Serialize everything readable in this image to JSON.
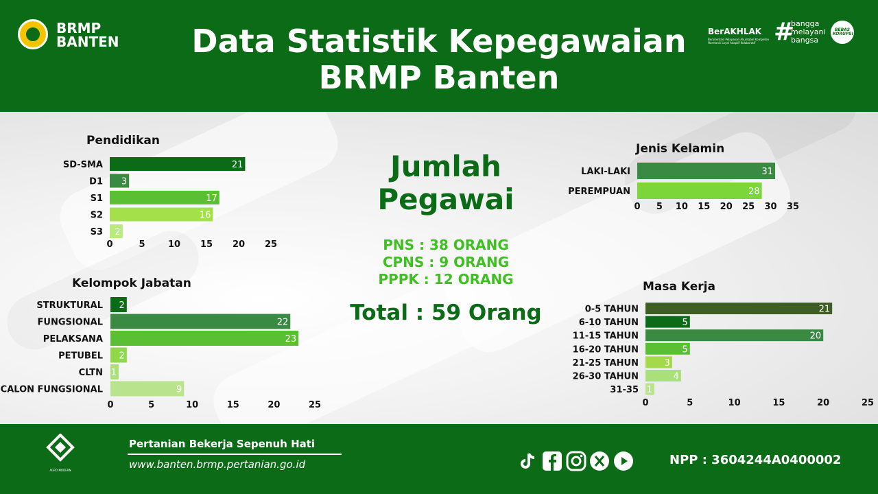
{
  "header": {
    "brand_line1": "BRMP",
    "brand_line2": "BANTEN",
    "title_line1": "Data Statistik Kepegawaian",
    "title_line2": "BRMP Banten",
    "berakhlak": "BerAKHLAK",
    "berakhlak_sub": "Berorientasi Pelayanan Akuntabel Kompeten Harmonis Loyal Adaptif Kolaboratif",
    "bangga": [
      "bangga",
      "melayani",
      "bangsa"
    ],
    "badge": "BEBAS KORUPSI"
  },
  "summary": {
    "title_line1": "Jumlah",
    "title_line2": "Pegawai",
    "pns": "PNS : 38 ORANG",
    "cpns": "CPNS : 9 ORANG",
    "pppk": "PPPK : 12 ORANG",
    "total": "Total : 59 Orang"
  },
  "footer": {
    "logo_text": "AGRO MODERN",
    "slogan": "Pertanian Bekerja Sepenuh Hati",
    "website": "www.banten.brmp.pertanian.go.id",
    "npp": "NPP : 3604244A0400002",
    "social_icons": [
      "tiktok-icon",
      "facebook-icon",
      "instagram-icon",
      "x-icon",
      "youtube-icon"
    ]
  },
  "chart_data": [
    {
      "type": "bar",
      "orientation": "horizontal",
      "title": "Pendidikan",
      "categories": [
        "SD-SMA",
        "D1",
        "S1",
        "S2",
        "S3"
      ],
      "values": [
        21,
        3,
        17,
        16,
        2
      ],
      "xlim": [
        0,
        25
      ],
      "ticks": [
        0,
        5,
        10,
        15,
        20,
        25
      ],
      "colors": [
        "#0b6b16",
        "#3a8a43",
        "#5bbf33",
        "#a3e04a",
        "#b9ea7c"
      ]
    },
    {
      "type": "bar",
      "orientation": "horizontal",
      "title": "Kelompok Jabatan",
      "categories": [
        "STRUKTURAL",
        "FUNGSIONAL",
        "PELAKSANA",
        "PETUBEL",
        "CLTN",
        "CALON FUNGSIONAL"
      ],
      "values": [
        2,
        22,
        23,
        2,
        1,
        9
      ],
      "xlim": [
        0,
        25
      ],
      "ticks": [
        0,
        5,
        10,
        15,
        20,
        25
      ],
      "colors": [
        "#0b6b16",
        "#3a8a43",
        "#5bbf33",
        "#8fd84a",
        "#a9e07a",
        "#b9e48d"
      ]
    },
    {
      "type": "bar",
      "orientation": "horizontal",
      "title": "Jenis Kelamin",
      "categories": [
        "LAKI-LAKI",
        "PEREMPUAN"
      ],
      "values": [
        31,
        28
      ],
      "xlim": [
        0,
        35
      ],
      "ticks": [
        0,
        5,
        10,
        15,
        20,
        25,
        30,
        35
      ],
      "colors": [
        "#3a8a43",
        "#7cd63a"
      ]
    },
    {
      "type": "bar",
      "orientation": "horizontal",
      "title": "Masa Kerja",
      "categories": [
        "0-5 TAHUN",
        "6-10 TAHUN",
        "11-15 TAHUN",
        "16-20 TAHUN",
        "21-25 TAHUN",
        "26-30 TAHUN",
        "31-35"
      ],
      "values": [
        21,
        5,
        20,
        5,
        3,
        4,
        1
      ],
      "xlim": [
        0,
        25
      ],
      "ticks": [
        0,
        5,
        10,
        15,
        20,
        25
      ],
      "colors": [
        "#3f5e26",
        "#0b6b16",
        "#3a8a43",
        "#5bbf33",
        "#a3d94a",
        "#a9e07a",
        "#b9e48d"
      ]
    }
  ]
}
